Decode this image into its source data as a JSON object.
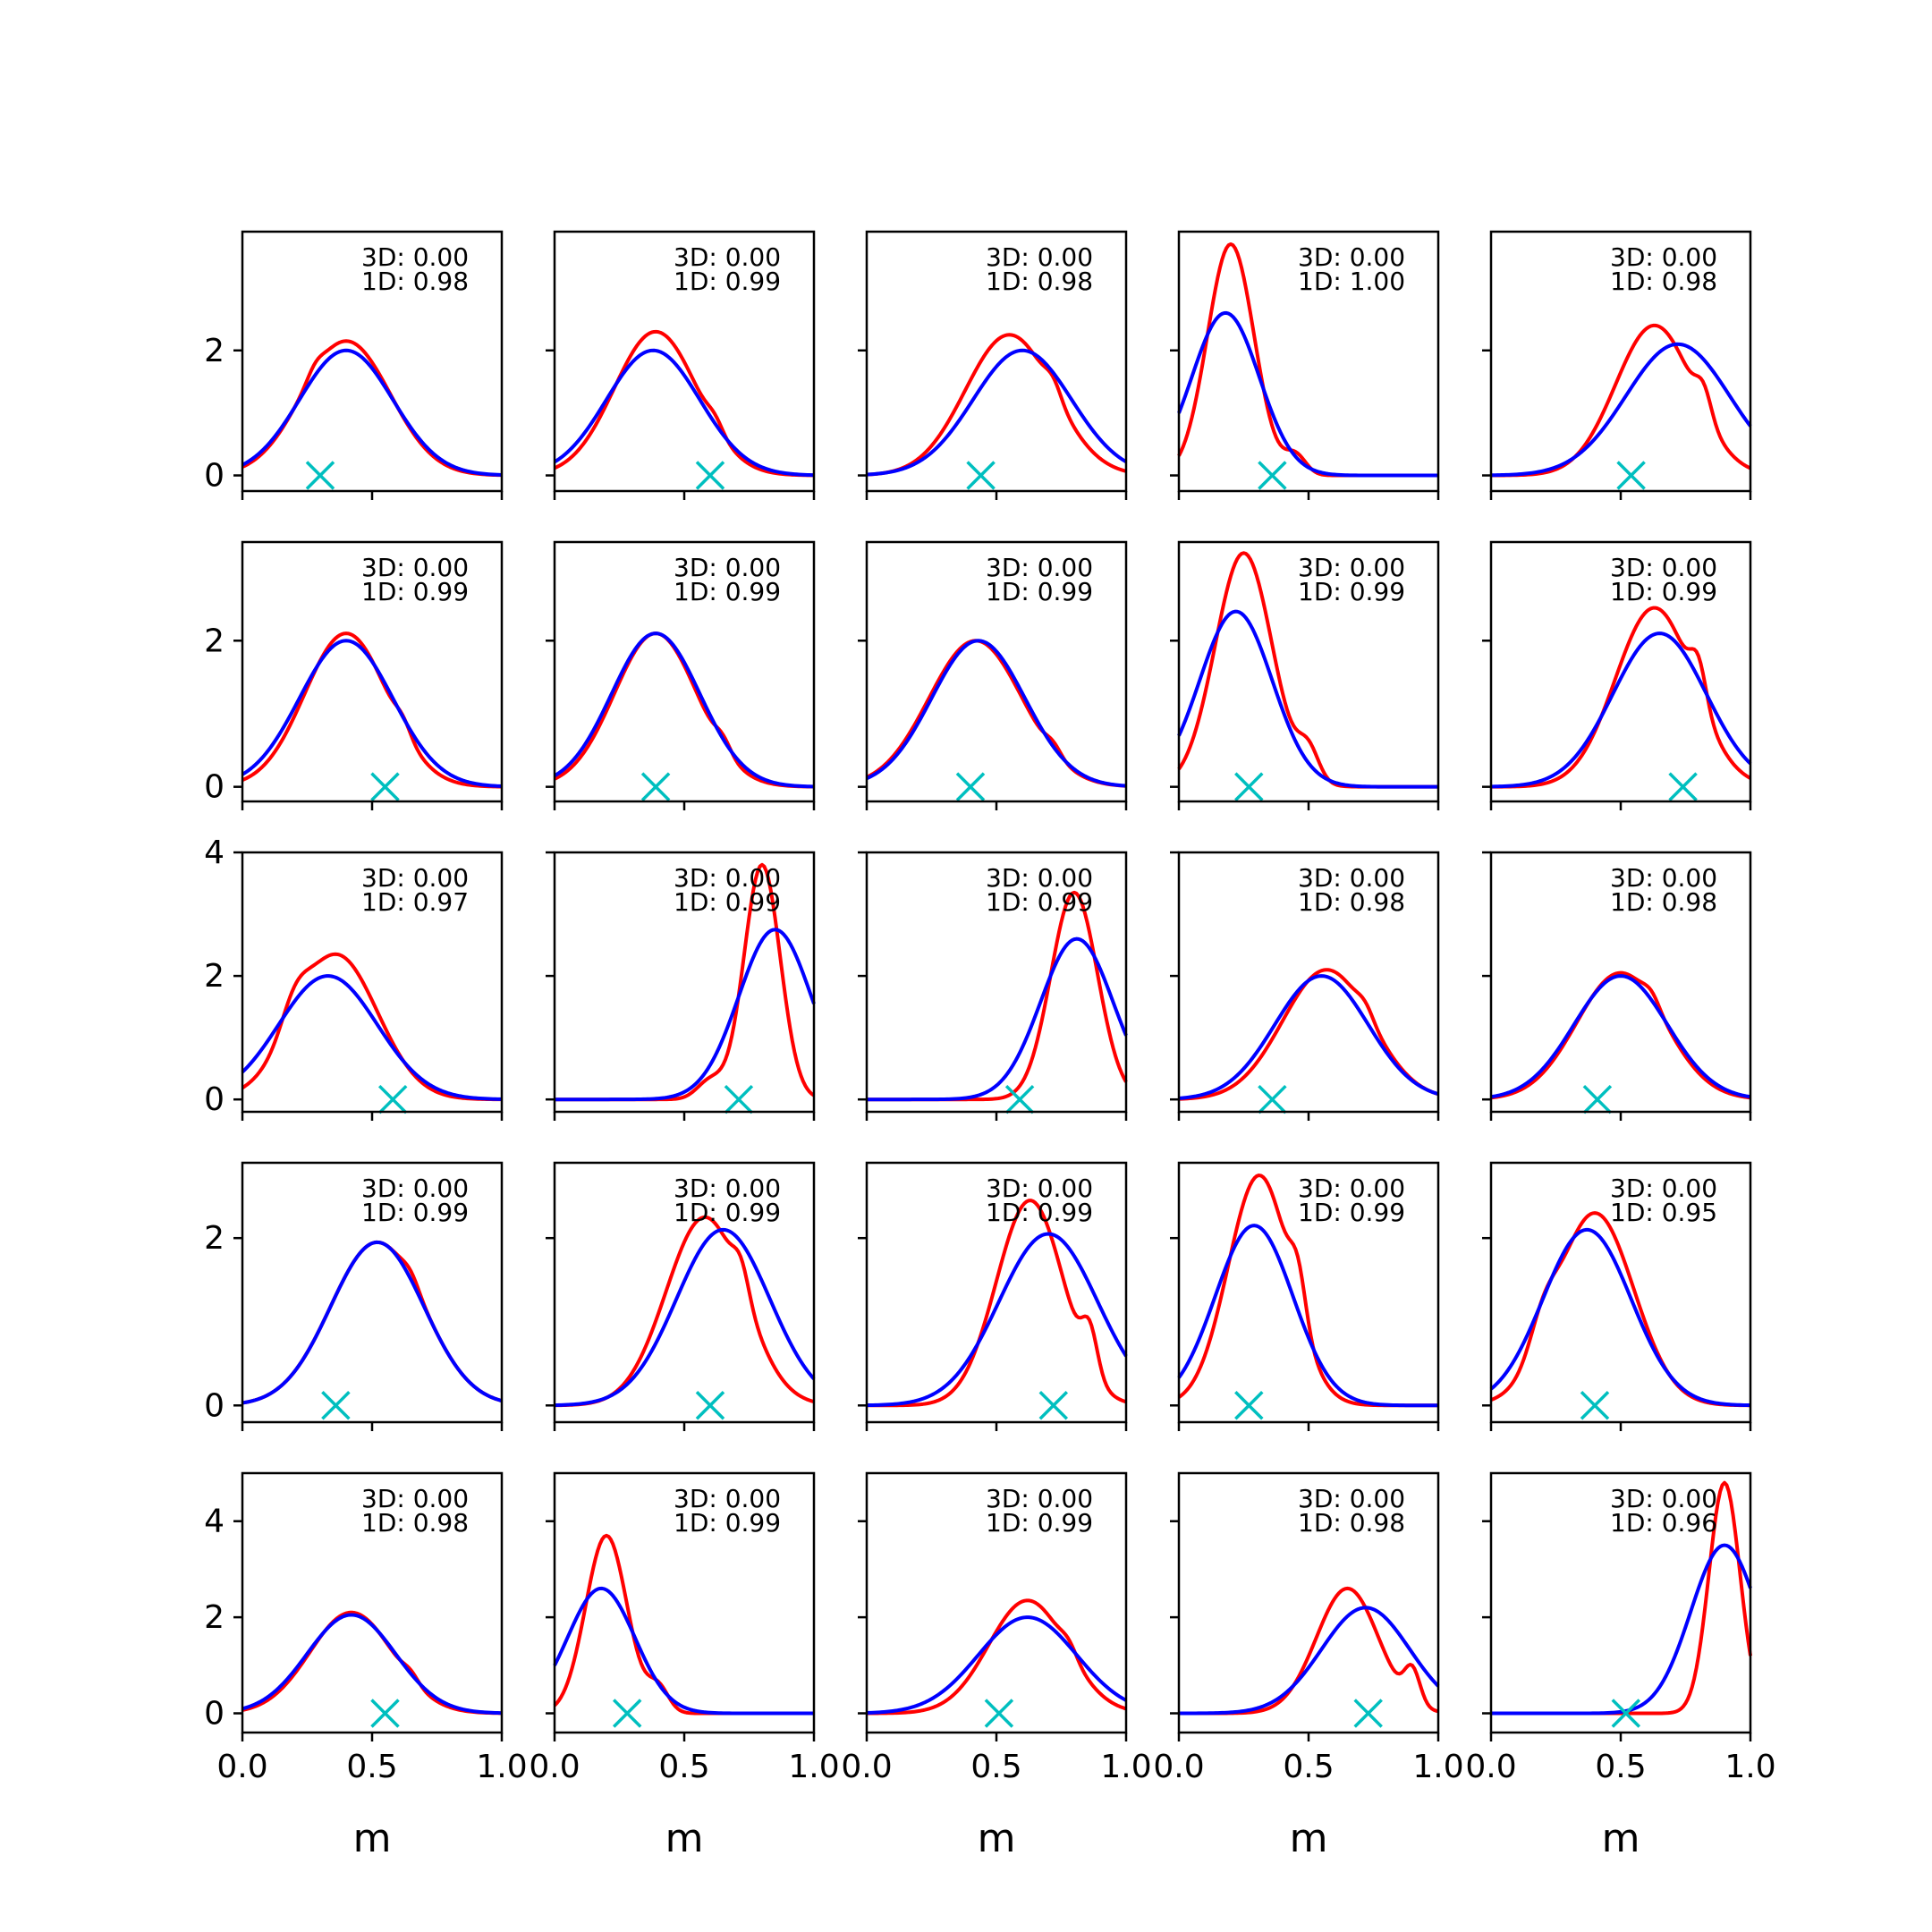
{
  "chart_data": {
    "type": "line",
    "layout": {
      "rows": 5,
      "cols": 5
    },
    "xlabel": "m",
    "xlim": [
      0,
      1
    ],
    "xticks": [
      "0.0",
      "0.5",
      "1.0"
    ],
    "series_colors": {
      "red": "#ff0000",
      "blue": "#0000ff",
      "marker": "#00bfbf"
    },
    "rows": [
      {
        "yticks": [
          "0",
          "2"
        ],
        "ylim": [
          -0.25,
          3.9
        ]
      },
      {
        "yticks": [
          "0",
          "2"
        ],
        "ylim": [
          -0.2,
          3.35
        ]
      },
      {
        "yticks": [
          "0",
          "2",
          "4"
        ],
        "ylim": [
          -0.2,
          4.0
        ]
      },
      {
        "yticks": [
          "0",
          "2"
        ],
        "ylim": [
          -0.2,
          2.9
        ]
      },
      {
        "yticks": [
          "0",
          "2",
          "4"
        ],
        "ylim": [
          -0.4,
          5.0
        ]
      }
    ],
    "panels": [
      {
        "label3d": "3D: 0.00",
        "label1d": "1D: 0.98",
        "marker_x": 0.3,
        "red": {
          "mode": 0.4,
          "peak": 2.15,
          "sigma": 0.17,
          "bumps": [
            [
              0.28,
              0.12,
              0.03
            ]
          ]
        },
        "blue": {
          "mode": 0.4,
          "peak": 2.0,
          "sigma": 0.18
        }
      },
      {
        "label3d": "3D: 0.00",
        "label1d": "1D: 0.99",
        "marker_x": 0.6,
        "red": {
          "mode": 0.39,
          "peak": 2.3,
          "sigma": 0.16,
          "bumps": [
            [
              0.62,
              0.15,
              0.03
            ]
          ]
        },
        "blue": {
          "mode": 0.38,
          "peak": 2.0,
          "sigma": 0.18
        }
      },
      {
        "label3d": "3D: 0.00",
        "label1d": "1D: 0.98",
        "marker_x": 0.44,
        "red": {
          "mode": 0.55,
          "peak": 2.25,
          "sigma": 0.17,
          "bumps": [
            [
              0.72,
              0.2,
              0.03
            ]
          ]
        },
        "blue": {
          "mode": 0.6,
          "peak": 2.0,
          "sigma": 0.19
        }
      },
      {
        "label3d": "3D: 0.00",
        "label1d": "1D: 1.00",
        "marker_x": 0.36,
        "red": {
          "mode": 0.2,
          "peak": 3.7,
          "sigma": 0.09,
          "bumps": [
            [
              0.45,
              0.3,
              0.04
            ]
          ]
        },
        "blue": {
          "mode": 0.18,
          "peak": 2.6,
          "sigma": 0.13
        }
      },
      {
        "label3d": "3D: 0.00",
        "label1d": "1D: 0.98",
        "marker_x": 0.54,
        "red": {
          "mode": 0.63,
          "peak": 2.4,
          "sigma": 0.15,
          "bumps": [
            [
              0.82,
              0.4,
              0.03
            ]
          ]
        },
        "blue": {
          "mode": 0.72,
          "peak": 2.1,
          "sigma": 0.2
        }
      },
      {
        "label3d": "3D: 0.00",
        "label1d": "1D: 0.99",
        "marker_x": 0.55,
        "red": {
          "mode": 0.4,
          "peak": 2.1,
          "sigma": 0.16,
          "bumps": [
            [
              0.62,
              0.15,
              0.03
            ]
          ]
        },
        "blue": {
          "mode": 0.4,
          "peak": 2.0,
          "sigma": 0.18
        }
      },
      {
        "label3d": "3D: 0.00",
        "label1d": "1D: 0.99",
        "marker_x": 0.39,
        "red": {
          "mode": 0.39,
          "peak": 2.1,
          "sigma": 0.16,
          "bumps": [
            [
              0.65,
              0.15,
              0.03
            ]
          ]
        },
        "blue": {
          "mode": 0.39,
          "peak": 2.1,
          "sigma": 0.17
        }
      },
      {
        "label3d": "3D: 0.00",
        "label1d": "1D: 0.99",
        "marker_x": 0.4,
        "red": {
          "mode": 0.42,
          "peak": 2.0,
          "sigma": 0.18,
          "bumps": [
            [
              0.72,
              0.12,
              0.03
            ]
          ]
        },
        "blue": {
          "mode": 0.43,
          "peak": 2.0,
          "sigma": 0.18
        }
      },
      {
        "label3d": "3D: 0.00",
        "label1d": "1D: 0.99",
        "marker_x": 0.27,
        "red": {
          "mode": 0.25,
          "peak": 3.2,
          "sigma": 0.11,
          "bumps": [
            [
              0.5,
              0.4,
              0.04
            ]
          ]
        },
        "blue": {
          "mode": 0.22,
          "peak": 2.4,
          "sigma": 0.14
        }
      },
      {
        "label3d": "3D: 0.00",
        "label1d": "1D: 0.99",
        "marker_x": 0.74,
        "red": {
          "mode": 0.63,
          "peak": 2.45,
          "sigma": 0.15,
          "bumps": [
            [
              0.8,
              0.5,
              0.03
            ]
          ]
        },
        "blue": {
          "mode": 0.65,
          "peak": 2.1,
          "sigma": 0.18
        }
      },
      {
        "label3d": "3D: 0.00",
        "label1d": "1D: 0.97",
        "marker_x": 0.58,
        "red": {
          "mode": 0.36,
          "peak": 2.35,
          "sigma": 0.16,
          "bumps": [
            [
              0.2,
              0.4,
              0.05
            ]
          ]
        },
        "blue": {
          "mode": 0.33,
          "peak": 2.0,
          "sigma": 0.19
        }
      },
      {
        "label3d": "3D: 0.00",
        "label1d": "1D: 0.99",
        "marker_x": 0.71,
        "red": {
          "mode": 0.8,
          "peak": 3.8,
          "sigma": 0.07,
          "bumps": [
            [
              0.6,
              0.3,
              0.05
            ]
          ]
        },
        "blue": {
          "mode": 0.85,
          "peak": 2.75,
          "sigma": 0.14
        }
      },
      {
        "label3d": "3D: 0.00",
        "label1d": "1D: 0.99",
        "marker_x": 0.59,
        "red": {
          "mode": 0.8,
          "peak": 3.35,
          "sigma": 0.09
        },
        "blue": {
          "mode": 0.81,
          "peak": 2.6,
          "sigma": 0.14
        }
      },
      {
        "label3d": "3D: 0.00",
        "label1d": "1D: 0.98",
        "marker_x": 0.36,
        "red": {
          "mode": 0.57,
          "peak": 2.1,
          "sigma": 0.17,
          "bumps": [
            [
              0.72,
              0.15,
              0.03
            ]
          ]
        },
        "blue": {
          "mode": 0.55,
          "peak": 2.0,
          "sigma": 0.18
        }
      },
      {
        "label3d": "3D: 0.00",
        "label1d": "1D: 0.98",
        "marker_x": 0.41,
        "red": {
          "mode": 0.5,
          "peak": 2.05,
          "sigma": 0.17,
          "bumps": [
            [
              0.62,
              0.15,
              0.03
            ]
          ]
        },
        "blue": {
          "mode": 0.5,
          "peak": 2.0,
          "sigma": 0.18
        }
      },
      {
        "label3d": "3D: 0.00",
        "label1d": "1D: 0.99",
        "marker_x": 0.36,
        "red": {
          "mode": 0.52,
          "peak": 1.95,
          "sigma": 0.18,
          "bumps": [
            [
              0.65,
              0.1,
              0.03
            ]
          ]
        },
        "blue": {
          "mode": 0.52,
          "peak": 1.95,
          "sigma": 0.18
        }
      },
      {
        "label3d": "3D: 0.00",
        "label1d": "1D: 0.99",
        "marker_x": 0.6,
        "red": {
          "mode": 0.58,
          "peak": 2.25,
          "sigma": 0.15,
          "bumps": [
            [
              0.72,
              0.3,
              0.03
            ]
          ]
        },
        "blue": {
          "mode": 0.65,
          "peak": 2.1,
          "sigma": 0.18
        }
      },
      {
        "label3d": "3D: 0.00",
        "label1d": "1D: 0.99",
        "marker_x": 0.72,
        "red": {
          "mode": 0.63,
          "peak": 2.45,
          "sigma": 0.13,
          "bumps": [
            [
              0.86,
              0.5,
              0.03
            ]
          ]
        },
        "blue": {
          "mode": 0.7,
          "peak": 2.05,
          "sigma": 0.19
        }
      },
      {
        "label3d": "3D: 0.00",
        "label1d": "1D: 0.99",
        "marker_x": 0.27,
        "red": {
          "mode": 0.31,
          "peak": 2.75,
          "sigma": 0.12,
          "bumps": [
            [
              0.46,
              0.5,
              0.03
            ]
          ]
        },
        "blue": {
          "mode": 0.29,
          "peak": 2.15,
          "sigma": 0.15
        }
      },
      {
        "label3d": "3D: 0.00",
        "label1d": "1D: 0.95",
        "marker_x": 0.4,
        "red": {
          "mode": 0.4,
          "peak": 2.3,
          "sigma": 0.15,
          "bumps": [
            [
              0.2,
              0.35,
              0.05
            ]
          ]
        },
        "blue": {
          "mode": 0.37,
          "peak": 2.1,
          "sigma": 0.17
        }
      },
      {
        "label3d": "3D: 0.00",
        "label1d": "1D: 0.98",
        "marker_x": 0.55,
        "red": {
          "mode": 0.42,
          "peak": 2.1,
          "sigma": 0.16,
          "bumps": [
            [
              0.65,
              0.15,
              0.03
            ]
          ]
        },
        "blue": {
          "mode": 0.42,
          "peak": 2.05,
          "sigma": 0.17
        }
      },
      {
        "label3d": "3D: 0.00",
        "label1d": "1D: 0.99",
        "marker_x": 0.28,
        "red": {
          "mode": 0.2,
          "peak": 3.7,
          "sigma": 0.08,
          "bumps": [
            [
              0.4,
              0.5,
              0.04
            ]
          ]
        },
        "blue": {
          "mode": 0.18,
          "peak": 2.6,
          "sigma": 0.13
        }
      },
      {
        "label3d": "3D: 0.00",
        "label1d": "1D: 0.99",
        "marker_x": 0.51,
        "red": {
          "mode": 0.62,
          "peak": 2.35,
          "sigma": 0.15,
          "bumps": [
            [
              0.78,
              0.2,
              0.03
            ]
          ]
        },
        "blue": {
          "mode": 0.62,
          "peak": 2.0,
          "sigma": 0.19
        }
      },
      {
        "label3d": "3D: 0.00",
        "label1d": "1D: 0.98",
        "marker_x": 0.73,
        "red": {
          "mode": 0.65,
          "peak": 2.6,
          "sigma": 0.12,
          "bumps": [
            [
              0.9,
              0.7,
              0.03
            ]
          ]
        },
        "blue": {
          "mode": 0.72,
          "peak": 2.2,
          "sigma": 0.17
        }
      },
      {
        "label3d": "3D: 0.00",
        "label1d": "1D: 0.96",
        "marker_x": 0.52,
        "red": {
          "mode": 0.9,
          "peak": 4.8,
          "sigma": 0.06
        },
        "blue": {
          "mode": 0.9,
          "peak": 3.5,
          "sigma": 0.13
        }
      }
    ]
  }
}
